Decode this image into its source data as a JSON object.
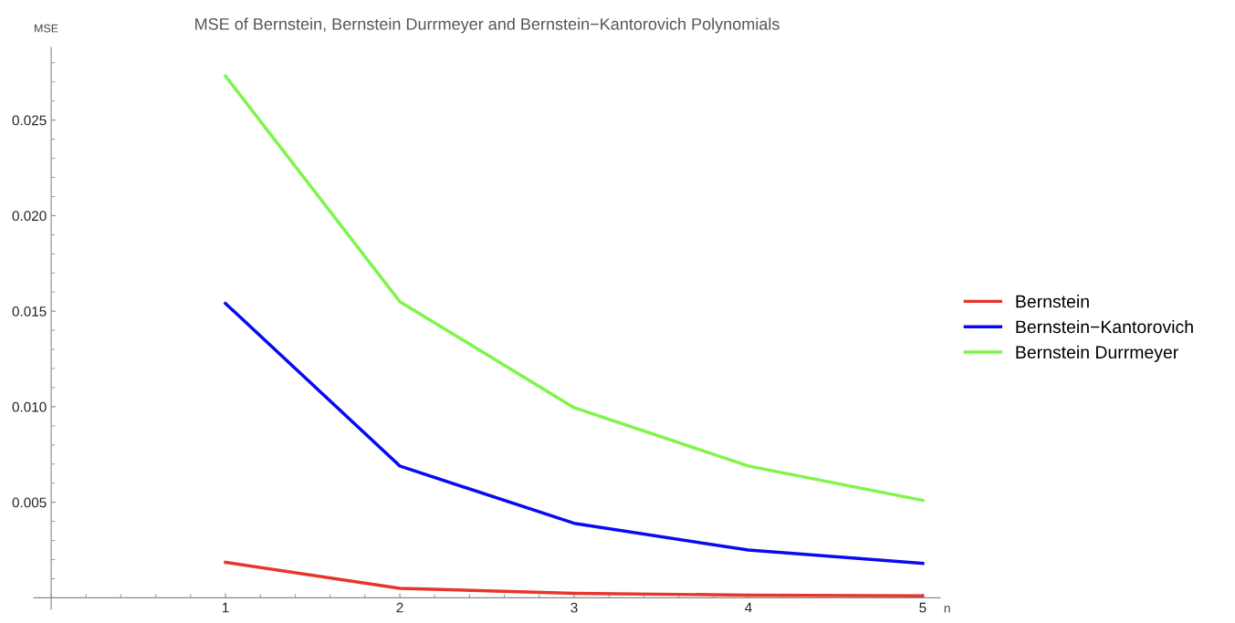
{
  "chart_data": {
    "type": "line",
    "title": "MSE of Bernstein, Bernstein Durrmeyer and Bernstein−Kantorovich Polynomials",
    "xlabel": "n",
    "ylabel": "MSE",
    "x": [
      1,
      2,
      3,
      4,
      5
    ],
    "series": [
      {
        "name": "Bernstein",
        "color": "#e8352b",
        "values": [
          0.00186,
          0.0005,
          0.00024,
          0.00014,
          0.0001
        ]
      },
      {
        "name": "Bernstein−Kantorovich",
        "color": "#0a0af0",
        "values": [
          0.0154,
          0.0069,
          0.0039,
          0.0025,
          0.0018
        ]
      },
      {
        "name": "Bernstein Durrmeyer",
        "color": "#7df54a",
        "values": [
          0.0273,
          0.0155,
          0.00995,
          0.0069,
          0.0051
        ]
      }
    ],
    "xlim": [
      -0.1,
      5.1
    ],
    "xticks": [
      1,
      2,
      3,
      4,
      5
    ],
    "ylim": [
      -0.0006,
      0.0288
    ],
    "yticks": [
      {
        "value": 0.005,
        "label": "0.005"
      },
      {
        "value": 0.01,
        "label": "0.010"
      },
      {
        "value": 0.015,
        "label": "0.015"
      },
      {
        "value": 0.02,
        "label": "0.020"
      },
      {
        "value": 0.025,
        "label": "0.025"
      }
    ],
    "legend": "right",
    "grid": false,
    "marker": "none",
    "line_style": "solid"
  }
}
